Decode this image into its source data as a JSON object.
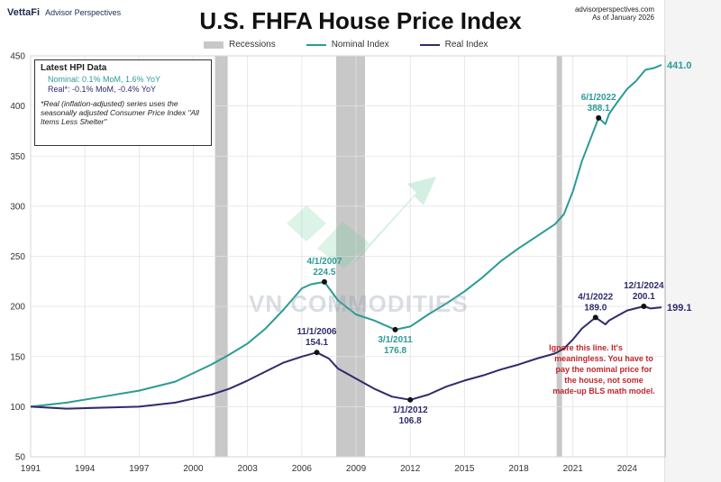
{
  "header": {
    "brand": "VettaFi",
    "brand_sub": "Advisor Perspectives",
    "source_line1": "advisorperspectives.com",
    "source_line2": "As of January 2026",
    "title": "U.S. FHFA House Price Index"
  },
  "legend": {
    "recessions": "Recessions",
    "nominal": "Nominal Index",
    "real": "Real Index"
  },
  "info_box": {
    "title": "Latest HPI Data",
    "nominal": "Nominal:  0.1% MoM, 1.6% YoY",
    "real": "Real*:  -0.1% MoM, -0.4% YoY",
    "footnote": "*Real (inflation-adjusted) series uses the seasonally adjusted Consumer Price Index \"All Items Less Shelter\""
  },
  "watermark": "VN COMMODITIES",
  "note": {
    "line1": "Ignore this line. It's",
    "line2": "meaningless. You have to",
    "line3": "pay the nominal price for",
    "line4": "the house, not some",
    "line5": "made-up BLS math model."
  },
  "colors": {
    "nominal": "#2b9b95",
    "real": "#2f2b6b",
    "recession": "#c8c8c8",
    "note": "#c0272d"
  },
  "chart_data": {
    "type": "line",
    "title": "U.S. FHFA House Price Index",
    "xlim": [
      1991,
      2026.1
    ],
    "ylim": [
      50,
      450
    ],
    "x_ticks": [
      1991,
      1994,
      1997,
      2000,
      2003,
      2006,
      2009,
      2012,
      2015,
      2018,
      2021,
      2024
    ],
    "y_ticks": [
      50,
      100,
      150,
      200,
      250,
      300,
      350,
      400,
      450
    ],
    "grid": true,
    "recessions": [
      [
        2001.2,
        2001.9
      ],
      [
        2007.9,
        2009.5
      ],
      [
        2020.1,
        2020.4
      ]
    ],
    "series": [
      {
        "name": "Nominal Index",
        "x": [
          1991,
          1993,
          1995,
          1997,
          1999,
          2001,
          2002,
          2003,
          2004,
          2005,
          2006,
          2006.5,
          2007.25,
          2008,
          2009,
          2010,
          2011.17,
          2012,
          2013,
          2014,
          2015,
          2016,
          2017,
          2018,
          2019,
          2020,
          2020.5,
          2021,
          2021.5,
          2022.42,
          2022.8,
          2023,
          2023.5,
          2024,
          2024.5,
          2025,
          2025.5,
          2025.9
        ],
        "y": [
          100,
          104,
          110,
          116,
          125,
          142,
          152,
          163,
          178,
          197,
          218,
          222,
          224.5,
          206,
          192,
          186,
          176.8,
          180,
          192,
          203,
          215,
          229,
          245,
          258,
          270,
          282,
          292,
          315,
          345,
          388.1,
          382,
          392,
          405,
          417,
          425,
          436,
          438,
          441
        ]
      },
      {
        "name": "Real Index",
        "x": [
          1991,
          1993,
          1995,
          1997,
          1999,
          2001,
          2002,
          2003,
          2004,
          2005,
          2006,
          2006.83,
          2007.5,
          2008,
          2009,
          2010,
          2011,
          2012,
          2013,
          2014,
          2015,
          2016,
          2017,
          2018,
          2019,
          2020,
          2020.5,
          2021,
          2021.5,
          2022.25,
          2022.8,
          2023,
          2023.5,
          2024,
          2024.92,
          2025.3,
          2025.9
        ],
        "y": [
          100,
          98,
          99,
          100,
          104,
          112,
          118,
          126,
          135,
          144,
          150,
          154.1,
          148,
          138,
          128,
          118,
          110,
          106.8,
          112,
          120,
          126,
          131,
          137,
          142,
          148,
          153,
          158,
          167,
          178,
          189,
          182,
          186,
          191,
          196,
          200.1,
          198,
          199.1
        ]
      }
    ],
    "annotations": [
      {
        "series": "Nominal Index",
        "x": 2007.25,
        "y": 224.5,
        "date": "4/1/2007",
        "value": "224.5"
      },
      {
        "series": "Nominal Index",
        "x": 2011.17,
        "y": 176.8,
        "date": "3/1/2011",
        "value": "176.8"
      },
      {
        "series": "Nominal Index",
        "x": 2022.42,
        "y": 388.1,
        "date": "6/1/2022",
        "value": "388.1"
      },
      {
        "series": "Nominal Index",
        "x": 2025.9,
        "y": 441.0,
        "date": "",
        "value": "441.0"
      },
      {
        "series": "Real Index",
        "x": 2006.83,
        "y": 154.1,
        "date": "11/1/2006",
        "value": "154.1"
      },
      {
        "series": "Real Index",
        "x": 2012.0,
        "y": 106.8,
        "date": "1/1/2012",
        "value": "106.8"
      },
      {
        "series": "Real Index",
        "x": 2022.25,
        "y": 189.0,
        "date": "4/1/2022",
        "value": "189.0"
      },
      {
        "series": "Real Index",
        "x": 2024.92,
        "y": 200.1,
        "date": "12/1/2024",
        "value": "200.1"
      },
      {
        "series": "Real Index",
        "x": 2025.9,
        "y": 199.1,
        "date": "",
        "value": "199.1"
      }
    ]
  }
}
